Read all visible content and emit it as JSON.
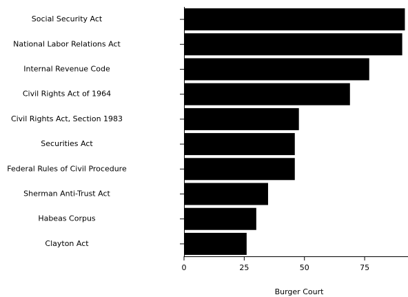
{
  "chart_data": {
    "type": "barh",
    "xlabel": "Burger Court",
    "categories": [
      "Social Security Act",
      "National Labor Relations Act",
      "Internal Revenue Code",
      "Civil Rights Act of 1964",
      "Civil Rights Act, Section 1983",
      "Securities Act",
      "Federal Rules of Civil Procedure",
      "Sherman Anti-Trust Act",
      "Habeas Corpus",
      "Clayton Act"
    ],
    "values": [
      91.7,
      90.6,
      76.9,
      68.9,
      47.7,
      46,
      46,
      34.9,
      30,
      26
    ],
    "color": "#000000",
    "xlim": [
      0,
      93
    ],
    "xticks": [
      0,
      25,
      50,
      75
    ]
  }
}
